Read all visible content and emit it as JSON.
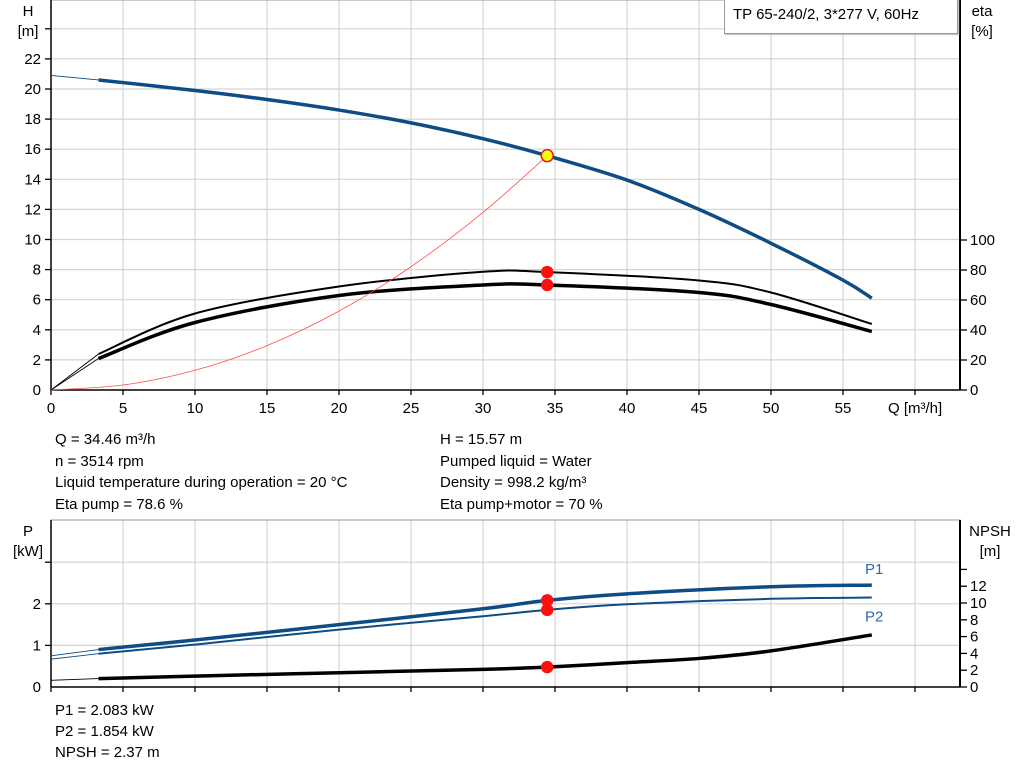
{
  "title": "TP 65-240/2, 3*277 V, 60Hz",
  "chart_data": [
    {
      "type": "line",
      "title": "TP 65-240/2, 3*277 V, 60Hz",
      "xlabel": "Q [m³/h]",
      "ylabel_left": "H",
      "ylabel_left_unit": "[m]",
      "ylabel_right": "eta",
      "ylabel_right_unit": "[%]",
      "xlim": [
        0,
        63
      ],
      "ylim_left": [
        0,
        25.9
      ],
      "ylim_right": [
        0,
        260
      ],
      "xticks": [
        "0",
        "5",
        "10",
        "15",
        "20",
        "25",
        "30",
        "35",
        "40",
        "45",
        "50",
        "55"
      ],
      "yticks_left": [
        "0",
        "2",
        "4",
        "6",
        "8",
        "10",
        "12",
        "14",
        "16",
        "18",
        "20",
        "22"
      ],
      "yticks_right": [
        "0",
        "20",
        "40",
        "60",
        "80",
        "100"
      ],
      "grid": true,
      "series": [
        {
          "id": "H",
          "axis": "left",
          "color": "#0f4c85",
          "width": 3.5,
          "x": [
            0,
            3.3,
            10,
            15,
            20,
            25,
            30,
            34.46,
            40,
            45,
            50,
            55,
            57
          ],
          "y": [
            20.9,
            20.6,
            19.9,
            19.3,
            18.6,
            17.75,
            16.7,
            15.57,
            13.95,
            12.0,
            9.75,
            7.3,
            6.1
          ]
        },
        {
          "id": "eta_pump",
          "axis": "right",
          "color": "#000000",
          "width": 2,
          "x": [
            0,
            3.3,
            10,
            20,
            30,
            34.46,
            45,
            50,
            57
          ],
          "y": [
            0,
            24,
            51,
            69,
            78.8,
            78.6,
            73,
            65,
            44
          ]
        },
        {
          "id": "eta_pump_motor",
          "axis": "right",
          "color": "#000000",
          "width": 3.5,
          "x": [
            0,
            3.3,
            10,
            20,
            30,
            34.46,
            45,
            50,
            57
          ],
          "y": [
            0,
            21,
            45,
            63,
            70,
            70,
            65,
            57,
            39
          ]
        },
        {
          "id": "system",
          "axis": "left",
          "color": "#ff5050",
          "width": 0.8,
          "x": [
            0,
            5,
            10,
            15,
            20,
            25,
            30,
            34.46
          ],
          "y": [
            0,
            0.33,
            1.31,
            2.95,
            5.24,
            8.19,
            11.8,
            15.57
          ]
        }
      ],
      "markers": [
        {
          "axis": "left",
          "x": 34.46,
          "y": 15.57,
          "fill": "#ffff00",
          "stroke": "#e02020"
        },
        {
          "axis": "right",
          "x": 34.46,
          "y": 78.6,
          "fill": "#ff1010",
          "stroke": "#ff1010"
        },
        {
          "axis": "right",
          "x": 34.46,
          "y": 70,
          "fill": "#ff1010",
          "stroke": "#ff1010"
        }
      ]
    },
    {
      "type": "line",
      "ylabel_left": "P",
      "ylabel_left_unit": "[kW]",
      "ylabel_right": "NPSH",
      "ylabel_right_unit": "[m]",
      "xlim": [
        0,
        63
      ],
      "ylim_left": [
        0,
        4
      ],
      "yticks_left": [
        "0",
        "1",
        "2"
      ],
      "yticks_right": [
        "0",
        "2",
        "4",
        "6",
        "8",
        "10",
        "12"
      ],
      "grid": true,
      "series": [
        {
          "id": "P1",
          "name": "P1",
          "axis": "left",
          "color": "#0f4c85",
          "width": 3.5,
          "x": [
            0,
            3.3,
            10,
            20,
            30,
            34.46,
            40,
            50,
            57
          ],
          "y": [
            0.75,
            0.9,
            1.13,
            1.5,
            1.88,
            2.083,
            2.24,
            2.41,
            2.45
          ]
        },
        {
          "id": "P2",
          "name": "P2",
          "axis": "left",
          "color": "#0f4c85",
          "width": 2,
          "x": [
            0,
            3.3,
            10,
            20,
            30,
            34.46,
            40,
            50,
            57
          ],
          "y": [
            0.67,
            0.8,
            1.02,
            1.38,
            1.7,
            1.854,
            1.99,
            2.12,
            2.15
          ]
        },
        {
          "id": "NPSH",
          "axis": "right",
          "color": "#000000",
          "width": 3.5,
          "x": [
            0,
            3.3,
            10,
            20,
            30,
            34.46,
            40,
            45,
            50,
            57
          ],
          "y": [
            0.8,
            1.0,
            1.3,
            1.7,
            2.1,
            2.37,
            2.9,
            3.4,
            4.3,
            6.2
          ]
        }
      ],
      "markers": [
        {
          "axis": "left",
          "x": 34.46,
          "y": 2.083,
          "fill": "#ff1010",
          "stroke": "#ff1010"
        },
        {
          "axis": "left",
          "x": 34.46,
          "y": 1.854,
          "fill": "#ff1010",
          "stroke": "#ff1010"
        },
        {
          "axis": "right",
          "x": 34.46,
          "y": 2.37,
          "fill": "#ff1010",
          "stroke": "#ff1010"
        }
      ]
    }
  ],
  "info": {
    "left": [
      "Q = 34.46 m³/h",
      "n = 3514 rpm",
      "Liquid temperature during operation = 20 °C",
      "Eta pump = 78.6 %"
    ],
    "right": [
      "H = 15.57 m",
      "Pumped liquid = Water",
      "Density = 998.2 kg/m³",
      "Eta pump+motor = 70 %"
    ],
    "bottom": [
      "P1 = 2.083 kW",
      "P2 = 1.854 kW",
      "NPSH = 2.37 m"
    ]
  }
}
